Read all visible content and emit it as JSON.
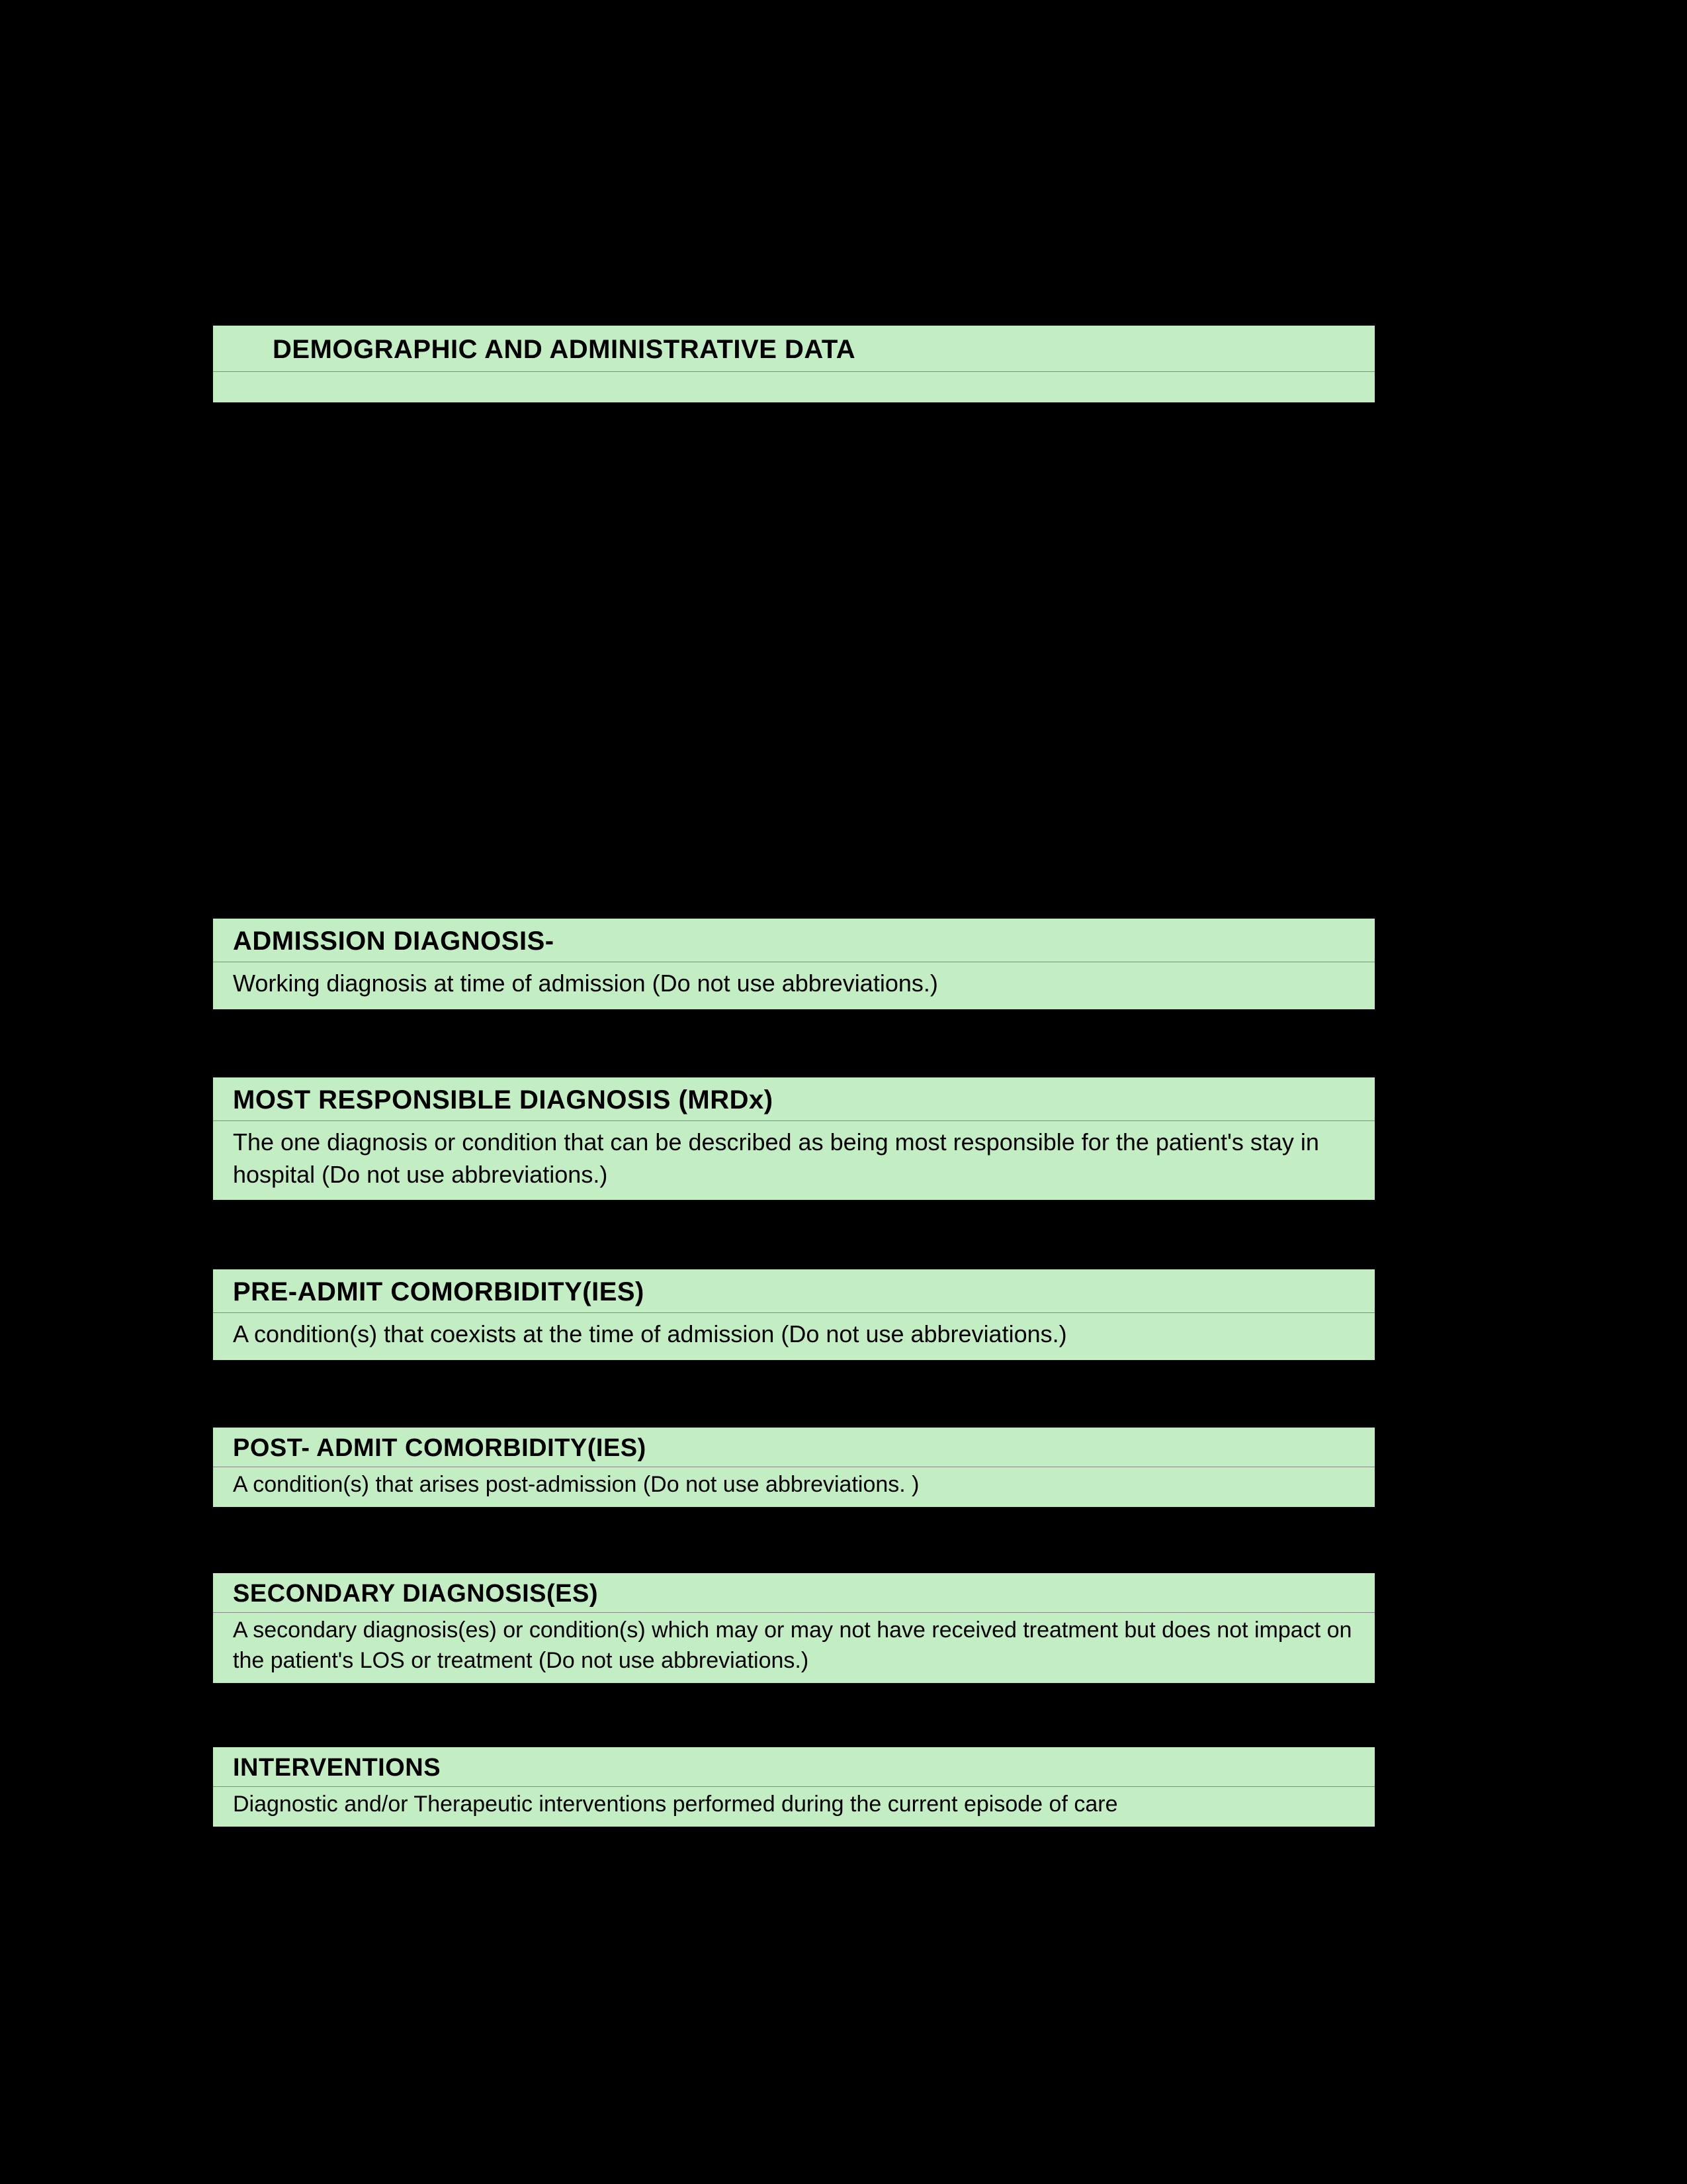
{
  "colors": {
    "background": "#000000",
    "section_bg": "#c3edc3",
    "text": "#000000",
    "divider": "#888888"
  },
  "sections": {
    "demographic": {
      "title": "DEMOGRAPHIC AND ADMINISTRATIVE DATA"
    },
    "admission": {
      "title": "ADMISSION DIAGNOSIS-",
      "description": "Working diagnosis at time of admission  (Do not use abbreviations.)"
    },
    "mrdx": {
      "title": "MOST RESPONSIBLE DIAGNOSIS (MRDx)",
      "description": "The one diagnosis or condition that can be described as being most responsible for the patient's stay in hospital (Do not use abbreviations.)"
    },
    "preadmit": {
      "title": "PRE-ADMIT COMORBIDITY(IES)",
      "description": "A condition(s) that coexists at the time of admission (Do not use abbreviations.)"
    },
    "postadmit": {
      "title": "POST- ADMIT COMORBIDITY(IES)",
      "description": "A condition(s) that arises post-admission  (Do not use abbreviations. )"
    },
    "secondary": {
      "title": "SECONDARY DIAGNOSIS(ES)",
      "description": "A secondary diagnosis(es) or condition(s) which may or may not have received treatment but does not impact on the patient's LOS or treatment (Do not use abbreviations.)"
    },
    "interventions": {
      "title": "INTERVENTIONS",
      "description": "Diagnostic and/or Therapeutic interventions performed during the current episode of care"
    }
  }
}
